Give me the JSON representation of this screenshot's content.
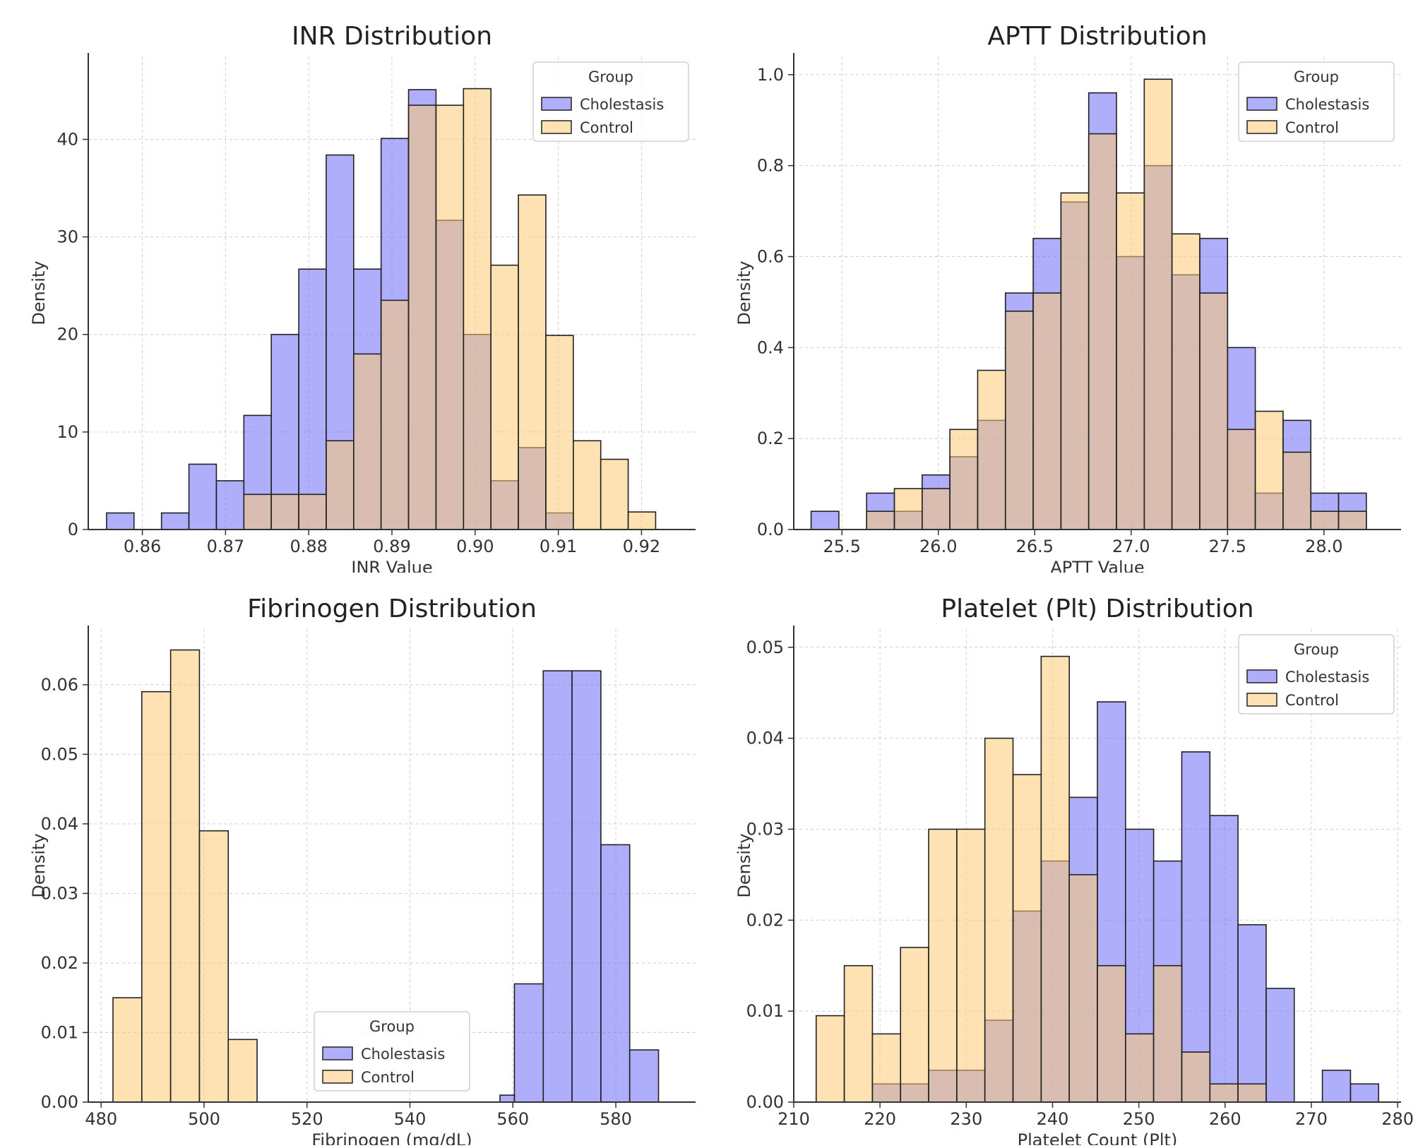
{
  "chart_data": [
    {
      "type": "bar",
      "subtype": "overlapping-histogram",
      "title": "INR Distribution",
      "xlabel": "INR Value",
      "ylabel": "Density",
      "xlim": [
        0.8535,
        0.9265
      ],
      "ylim": [
        0,
        48.5
      ],
      "xticks": [
        0.86,
        0.87,
        0.88,
        0.89,
        0.9,
        0.91,
        0.92
      ],
      "xtick_labels": [
        "0.86",
        "0.87",
        "0.88",
        "0.89",
        "0.90",
        "0.91",
        "0.92"
      ],
      "yticks": [
        0,
        10,
        20,
        30,
        40
      ],
      "ytick_labels": [
        "0",
        "10",
        "20",
        "30",
        "40"
      ],
      "grid": true,
      "legend": {
        "title": "Group",
        "position": "top-right",
        "entries": [
          "Cholestasis",
          "Control"
        ]
      },
      "bin_edges": [
        0.8557,
        0.859,
        0.8623,
        0.8656,
        0.8689,
        0.8722,
        0.8755,
        0.8788,
        0.8821,
        0.8854,
        0.8887,
        0.892,
        0.8953,
        0.8986,
        0.9019,
        0.9052,
        0.9085,
        0.9118,
        0.9151,
        0.9184,
        0.9217,
        0.925
      ],
      "series": [
        {
          "name": "Cholestasis",
          "color": "#6d6cf7",
          "values": [
            1.7,
            0,
            1.7,
            6.7,
            5.0,
            11.7,
            20.0,
            26.7,
            38.4,
            26.7,
            40.1,
            45.1,
            31.7,
            20.0,
            5.0,
            8.4,
            1.7,
            0,
            0,
            0,
            0
          ]
        },
        {
          "name": "Control",
          "color": "#fdca74",
          "values": [
            0,
            0,
            0,
            0,
            0,
            3.6,
            3.6,
            3.6,
            9.1,
            18.0,
            23.5,
            43.5,
            43.5,
            45.2,
            27.1,
            34.3,
            19.9,
            9.1,
            7.2,
            1.8,
            0
          ]
        }
      ]
    },
    {
      "type": "bar",
      "subtype": "overlapping-histogram",
      "title": "APTT Distribution",
      "xlabel": "APTT Value",
      "ylabel": "Density",
      "xlim": [
        25.25,
        28.4
      ],
      "ylim": [
        0,
        1.04
      ],
      "xticks": [
        25.5,
        26.0,
        26.5,
        27.0,
        27.5,
        28.0
      ],
      "xtick_labels": [
        "25.5",
        "26.0",
        "26.5",
        "27.0",
        "27.5",
        "28.0"
      ],
      "yticks": [
        0.0,
        0.2,
        0.4,
        0.6,
        0.8,
        1.0
      ],
      "ytick_labels": [
        "0.0",
        "0.2",
        "0.4",
        "0.6",
        "0.8",
        "1.0"
      ],
      "grid": true,
      "legend": {
        "title": "Group",
        "position": "top-right",
        "entries": [
          "Cholestasis",
          "Control"
        ]
      },
      "bin_edges": [
        25.34,
        25.484,
        25.628,
        25.772,
        25.916,
        26.06,
        26.204,
        26.348,
        26.492,
        26.636,
        26.78,
        26.924,
        27.068,
        27.212,
        27.356,
        27.5,
        27.644,
        27.788,
        27.932,
        28.076,
        28.22
      ],
      "series": [
        {
          "name": "Cholestasis",
          "color": "#6d6cf7",
          "values": [
            0.04,
            0,
            0.08,
            0.04,
            0.12,
            0.16,
            0.24,
            0.52,
            0.64,
            0.72,
            0.96,
            0.6,
            0.8,
            0.56,
            0.64,
            0.4,
            0.08,
            0.24,
            0.08,
            0.08
          ]
        },
        {
          "name": "Control",
          "color": "#fdca74",
          "values": [
            0,
            0,
            0.04,
            0.09,
            0.09,
            0.22,
            0.35,
            0.48,
            0.52,
            0.74,
            0.87,
            0.74,
            0.99,
            0.65,
            0.52,
            0.22,
            0.26,
            0.17,
            0.04,
            0.04
          ]
        }
      ]
    },
    {
      "type": "bar",
      "subtype": "overlapping-histogram",
      "title": "Fibrinogen Distribution",
      "xlabel": "Fibrinogen (mg/dL)",
      "ylabel": "Density",
      "xlim": [
        477.5,
        595.5
      ],
      "ylim": [
        0,
        0.068
      ],
      "xticks": [
        480,
        500,
        520,
        540,
        560,
        580
      ],
      "xtick_labels": [
        "480",
        "500",
        "520",
        "540",
        "560",
        "580"
      ],
      "yticks": [
        0.0,
        0.01,
        0.02,
        0.03,
        0.04,
        0.05,
        0.06
      ],
      "ytick_labels": [
        "0.00",
        "0.01",
        "0.02",
        "0.03",
        "0.04",
        "0.05",
        "0.06"
      ],
      "grid": true,
      "legend": {
        "title": "Group",
        "position": "bottom-center",
        "entries": [
          "Cholestasis",
          "Control"
        ]
      },
      "series": [
        {
          "name": "Cholestasis",
          "color": "#6d6cf7",
          "bin_edges": [
            557.5,
            560.3,
            565.9,
            571.5,
            577.1,
            582.7,
            588.3
          ],
          "values": [
            0.001,
            0.017,
            0.062,
            0.062,
            0.037,
            0.0075
          ]
        },
        {
          "name": "Control",
          "color": "#fdca74",
          "bin_edges": [
            482.3,
            487.9,
            493.5,
            499.1,
            504.7,
            510.3
          ],
          "values": [
            0.015,
            0.059,
            0.065,
            0.039,
            0.009
          ]
        }
      ]
    },
    {
      "type": "bar",
      "subtype": "overlapping-histogram",
      "title": "Platelet (Plt) Distribution",
      "xlabel": "Platelet Count (Plt)",
      "ylabel": "Density",
      "xlim": [
        210,
        280.4
      ],
      "ylim": [
        0,
        0.052
      ],
      "xticks": [
        210,
        220,
        230,
        240,
        250,
        260,
        270,
        280
      ],
      "xtick_labels": [
        "210",
        "220",
        "230",
        "240",
        "250",
        "260",
        "270",
        "280"
      ],
      "yticks": [
        0.0,
        0.01,
        0.02,
        0.03,
        0.04,
        0.05
      ],
      "ytick_labels": [
        "0.00",
        "0.01",
        "0.02",
        "0.03",
        "0.04",
        "0.05"
      ],
      "grid": true,
      "legend": {
        "title": "Group",
        "position": "top-right",
        "entries": [
          "Cholestasis",
          "Control"
        ]
      },
      "bin_edges": [
        212.6,
        215.86,
        219.12,
        222.38,
        225.64,
        228.9,
        232.16,
        235.42,
        238.68,
        241.94,
        245.2,
        248.46,
        251.72,
        254.98,
        258.24,
        261.5,
        264.76,
        268.02,
        271.28,
        274.54,
        277.8
      ],
      "series": [
        {
          "name": "Cholestasis",
          "color": "#6d6cf7",
          "values": [
            0,
            0,
            0.002,
            0.002,
            0.0035,
            0.0035,
            0.009,
            0.021,
            0.0265,
            0.0335,
            0.044,
            0.03,
            0.0265,
            0.0385,
            0.0315,
            0.0195,
            0.0125,
            0,
            0.0035,
            0.002
          ]
        },
        {
          "name": "Control",
          "color": "#fdca74",
          "values": [
            0.0095,
            0.015,
            0.0075,
            0.017,
            0.03,
            0.03,
            0.04,
            0.036,
            0.049,
            0.025,
            0.015,
            0.0075,
            0.015,
            0.0055,
            0.002,
            0.002,
            0,
            0,
            0,
            0
          ]
        }
      ]
    }
  ]
}
